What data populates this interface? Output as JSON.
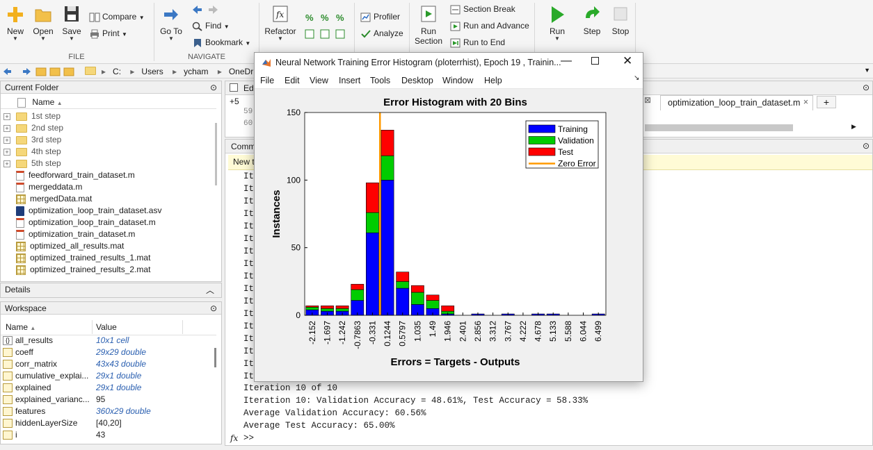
{
  "toolstrip": {
    "file_section": "FILE",
    "navigate_section": "NAVIGATE",
    "new_label": "New",
    "open_label": "Open",
    "save_label": "Save",
    "compare_label": "Compare",
    "print_label": "Print",
    "goto_label": "Go To",
    "find_label": "Find",
    "bookmark_label": "Bookmark",
    "refactor_label": "Refactor",
    "profiler_label": "Profiler",
    "analyze_label": "Analyze",
    "run_section_label": "Run\nSection",
    "run_section_line1": "Run",
    "run_section_line2": "Section",
    "section_break_label": "Section Break",
    "run_and_advance_label": "Run and Advance",
    "run_to_end_label": "Run to End",
    "run_label": "Run",
    "step_label": "Step",
    "stop_label": "Stop"
  },
  "address": {
    "parts": [
      "C:",
      "Users",
      "ycham",
      "OneDrive"
    ]
  },
  "current_folder": {
    "title": "Current Folder",
    "col_name": "Name",
    "items": [
      {
        "name": "1st step",
        "type": "folder"
      },
      {
        "name": "2nd step",
        "type": "folder"
      },
      {
        "name": "3rd step",
        "type": "folder"
      },
      {
        "name": "4th step",
        "type": "folder"
      },
      {
        "name": "5th step",
        "type": "folder"
      },
      {
        "name": "feedforward_train_dataset.m",
        "type": "m"
      },
      {
        "name": "mergeddata.m",
        "type": "m"
      },
      {
        "name": "mergedData.mat",
        "type": "mat"
      },
      {
        "name": "optimization_loop_train_dataset.asv",
        "type": "asv"
      },
      {
        "name": "optimization_loop_train_dataset.m",
        "type": "m"
      },
      {
        "name": "optimization_train_dataset.m",
        "type": "m"
      },
      {
        "name": "optimized_all_results.mat",
        "type": "mat"
      },
      {
        "name": "optimized_trained_results_1.mat",
        "type": "mat"
      },
      {
        "name": "optimized_trained_results_2.mat",
        "type": "mat"
      }
    ]
  },
  "details": {
    "title": "Details"
  },
  "workspace": {
    "title": "Workspace",
    "col_name": "Name",
    "col_value": "Value",
    "rows": [
      {
        "name": "all_results",
        "value": "10x1 cell",
        "kind": "cell"
      },
      {
        "name": "coeff",
        "value": "29x29 double",
        "kind": "mat"
      },
      {
        "name": "corr_matrix",
        "value": "43x43 double",
        "kind": "mat"
      },
      {
        "name": "cumulative_explai...",
        "value": "29x1 double",
        "kind": "mat"
      },
      {
        "name": "explained",
        "value": "29x1 double",
        "kind": "mat"
      },
      {
        "name": "explained_varianc...",
        "value": "95",
        "kind": "num"
      },
      {
        "name": "features",
        "value": "360x29 double",
        "kind": "mat"
      },
      {
        "name": "hiddenLayerSize",
        "value": "[40,20]",
        "kind": "num"
      },
      {
        "name": "i",
        "value": "43",
        "kind": "num"
      }
    ]
  },
  "editor": {
    "tab_edit": "Edi",
    "tab_file": "optimization_loop_train_dataset.m",
    "plus": "+5",
    "line59": "59",
    "line60": "60"
  },
  "command": {
    "title": "Comm",
    "banner": "New t",
    "iter_prefix": "It",
    "lines": [
      "Iteration 10 of 10",
      "Iteration 10: Validation Accuracy = 48.61%, Test Accuracy = 58.33%",
      "Average Validation Accuracy: 60.56%",
      "Average Test Accuracy: 65.00%"
    ],
    "prompt": ">>",
    "fx": "fx"
  },
  "figure": {
    "title": "Neural Network Training Error Histogram (ploterrhist), Epoch 19 , Trainin...",
    "menu": [
      "File",
      "Edit",
      "View",
      "Insert",
      "Tools",
      "Desktop",
      "Window",
      "Help"
    ]
  },
  "chart_data": {
    "type": "bar",
    "title": "Error Histogram with 20 Bins",
    "xlabel": "Errors = Targets - Outputs",
    "ylabel": "Instances",
    "ylim": [
      0,
      150
    ],
    "yticks": [
      0,
      50,
      100,
      150
    ],
    "categories": [
      "-2.152",
      "-1.697",
      "-1.242",
      "-0.7863",
      "-0.331",
      "0.1244",
      "0.5797",
      "1.035",
      "1.49",
      "1.946",
      "2.401",
      "2.856",
      "3.312",
      "3.767",
      "4.222",
      "4.678",
      "5.133",
      "5.588",
      "6.044",
      "6.499"
    ],
    "stacked": true,
    "series": [
      {
        "name": "Training",
        "color": "#0000ff",
        "values": [
          4,
          3,
          3,
          11,
          61,
          100,
          20,
          8,
          5,
          1,
          0,
          1,
          0,
          1,
          0,
          1,
          1,
          0,
          0,
          1
        ]
      },
      {
        "name": "Validation",
        "color": "#00cc00",
        "values": [
          2,
          2,
          2,
          8,
          15,
          18,
          5,
          9,
          6,
          2,
          0,
          0,
          0,
          0,
          0,
          0,
          0,
          0,
          0,
          0
        ]
      },
      {
        "name": "Test",
        "color": "#ff0000",
        "values": [
          1,
          2,
          2,
          4,
          22,
          19,
          7,
          5,
          4,
          4,
          0,
          0,
          0,
          0,
          0,
          0,
          0,
          0,
          0,
          0
        ]
      }
    ],
    "zero_error": {
      "name": "Zero Error",
      "color": "#ff9900",
      "x_index": 5.0
    },
    "legend_position": "top-right"
  }
}
